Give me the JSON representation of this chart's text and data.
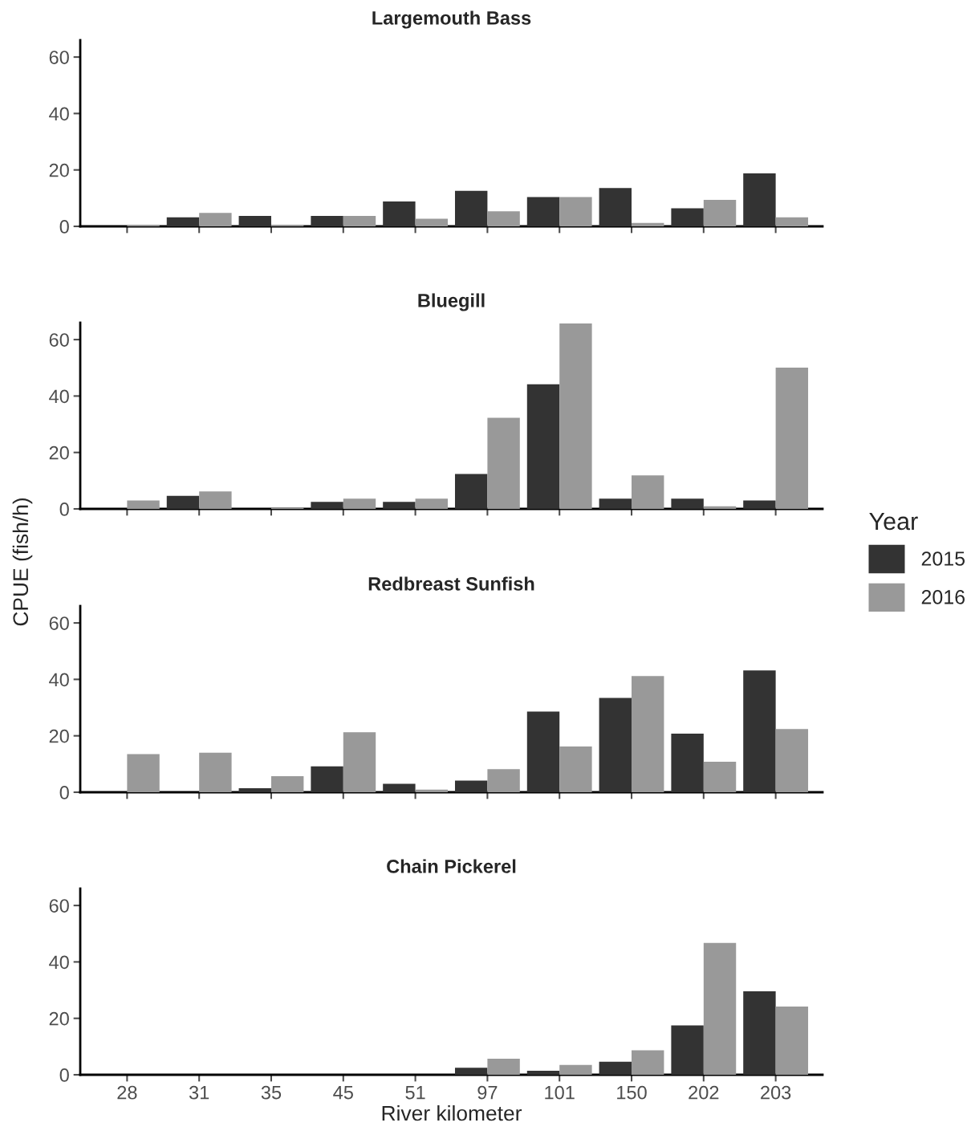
{
  "chart_data": [
    {
      "type": "bar",
      "title": "Largemouth Bass",
      "legend": "right",
      "legend_title": "Year",
      "categories": [
        "28",
        "31",
        "35",
        "45",
        "51",
        "97",
        "101",
        "150",
        "202",
        "203"
      ],
      "ylim": [
        0,
        66
      ],
      "yticks": [
        0,
        20,
        40,
        60
      ],
      "tick_labels": "y",
      "grid": false,
      "series": [
        {
          "name": "2015",
          "color": "#333333",
          "values": [
            0,
            3.2,
            3.7,
            3.7,
            8.8,
            12.6,
            10.4,
            13.6,
            6.4,
            18.8
          ]
        },
        {
          "name": "2016",
          "color": "#999999",
          "values": [
            0.5,
            4.8,
            0.5,
            3.7,
            2.7,
            5.3,
            10.4,
            1.2,
            9.4,
            3.2
          ]
        }
      ]
    },
    {
      "type": "bar",
      "title": "Bluegill",
      "ylabel": "CPUE (fish/h)",
      "categories": [
        "28",
        "31",
        "35",
        "45",
        "51",
        "97",
        "101",
        "150",
        "202",
        "203"
      ],
      "ylim": [
        0,
        66
      ],
      "yticks": [
        0,
        20,
        40,
        60
      ],
      "tick_labels": "y",
      "grid": false,
      "series": [
        {
          "name": "2015",
          "color": "#333333",
          "values": [
            0,
            4.6,
            0,
            2.5,
            2.5,
            12.4,
            44.2,
            3.6,
            3.6,
            3.0
          ]
        },
        {
          "name": "2016",
          "color": "#999999",
          "values": [
            3.0,
            6.2,
            0.4,
            3.6,
            3.6,
            32.3,
            65.7,
            11.9,
            0.9,
            50.1
          ]
        }
      ]
    },
    {
      "type": "bar",
      "title": "Redbreast Sunfish",
      "categories": [
        "28",
        "31",
        "35",
        "45",
        "51",
        "97",
        "101",
        "150",
        "202",
        "203"
      ],
      "ylim": [
        0,
        66
      ],
      "yticks": [
        0,
        20,
        40,
        60
      ],
      "tick_labels": "y",
      "grid": false,
      "series": [
        {
          "name": "2015",
          "color": "#333333",
          "values": [
            0,
            0,
            1.4,
            9.2,
            3.0,
            4.1,
            28.6,
            33.4,
            20.8,
            43.2
          ]
        },
        {
          "name": "2016",
          "color": "#999999",
          "values": [
            13.5,
            14.0,
            5.7,
            21.3,
            0.9,
            8.2,
            16.2,
            41.2,
            10.8,
            22.4
          ]
        }
      ]
    },
    {
      "type": "bar",
      "title": "Chain Pickerel",
      "xlabel": "River kilometer",
      "categories": [
        "28",
        "31",
        "35",
        "45",
        "51",
        "97",
        "101",
        "150",
        "202",
        "203"
      ],
      "ylim": [
        0,
        66
      ],
      "yticks": [
        0,
        20,
        40,
        60
      ],
      "grid": false,
      "series": [
        {
          "name": "2015",
          "color": "#333333",
          "values": [
            0,
            0,
            0,
            0,
            0,
            2.5,
            1.4,
            4.6,
            17.5,
            29.6
          ]
        },
        {
          "name": "2016",
          "color": "#999999",
          "values": [
            0,
            0,
            0,
            0,
            0,
            5.7,
            3.5,
            8.7,
            46.7,
            24.2
          ]
        }
      ]
    }
  ]
}
